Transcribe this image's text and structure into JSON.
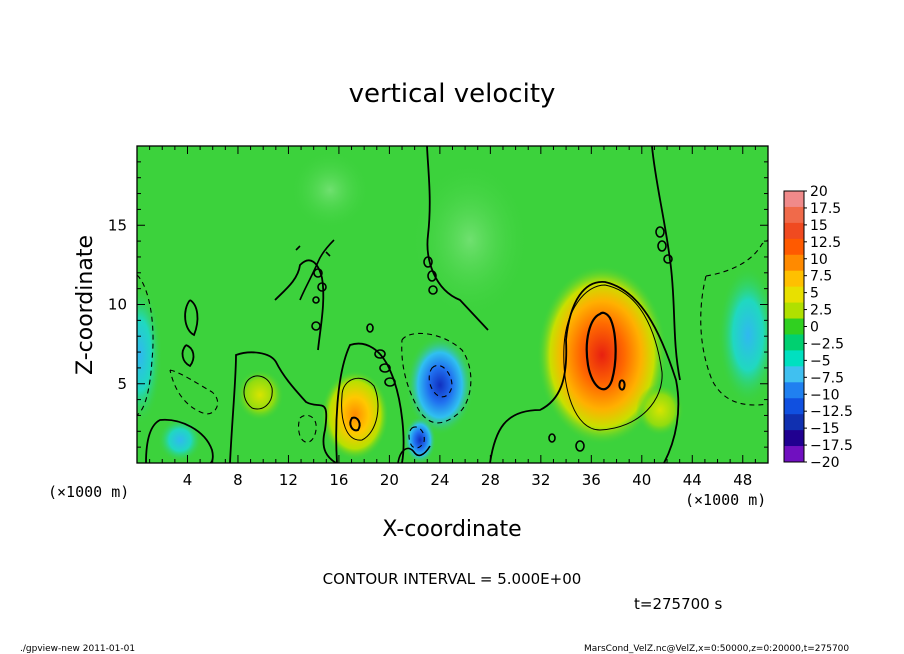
{
  "chart_data": {
    "type": "heatmap",
    "title": "vertical velocity",
    "xlabel": "X-coordinate",
    "ylabel": "Z-coordinate",
    "xlim": [
      0,
      50
    ],
    "ylim": [
      0,
      20
    ],
    "x_unit": "(×1000 m)",
    "z_unit": "(×1000 m)",
    "x_ticks": [
      4,
      8,
      12,
      16,
      20,
      24,
      28,
      32,
      36,
      40,
      44,
      48
    ],
    "y_ticks": [
      5,
      10,
      15
    ],
    "colorbar": {
      "levels": [
        "20",
        "17.5",
        "15",
        "12.5",
        "10",
        "7.5",
        "5",
        "2.5",
        "0",
        "−2.5",
        "−5",
        "−7.5",
        "−10",
        "−12.5",
        "−15",
        "−17.5",
        "−20"
      ],
      "colors": [
        "#f08a8a",
        "#f06a4a",
        "#f04a20",
        "#ff5a00",
        "#ff8a00",
        "#ffc000",
        "#e8e000",
        "#b0e000",
        "#30d020",
        "#00d070",
        "#00e0c0",
        "#40c0f0",
        "#2080f0",
        "#1050e0",
        "#1030b0",
        "#200090",
        "#7010c0"
      ]
    },
    "features": [
      {
        "type": "updraft",
        "x": 37,
        "z": 7,
        "peak": 17.5
      },
      {
        "type": "updraft",
        "x": 18,
        "z": 3,
        "peak": 10
      },
      {
        "type": "updraft",
        "x": 10,
        "z": 4,
        "peak": 5
      },
      {
        "type": "downdraft",
        "x": 23.5,
        "z": 5,
        "peak": -15
      },
      {
        "type": "downdraft",
        "x": 47,
        "z": 8,
        "peak": -7.5
      },
      {
        "type": "downdraft",
        "x": 0.5,
        "z": 7,
        "peak": -7.5
      }
    ],
    "background_color": "#3cd23c"
  },
  "annotations": {
    "contour_interval": "CONTOUR INTERVAL = 5.000E+00",
    "time": "t=275700 s",
    "footer_left": "./gpview-new  2011-01-01",
    "footer_right": "MarsCond_VelZ.nc@VelZ,x=0:50000,z=0:20000,t=275700"
  }
}
